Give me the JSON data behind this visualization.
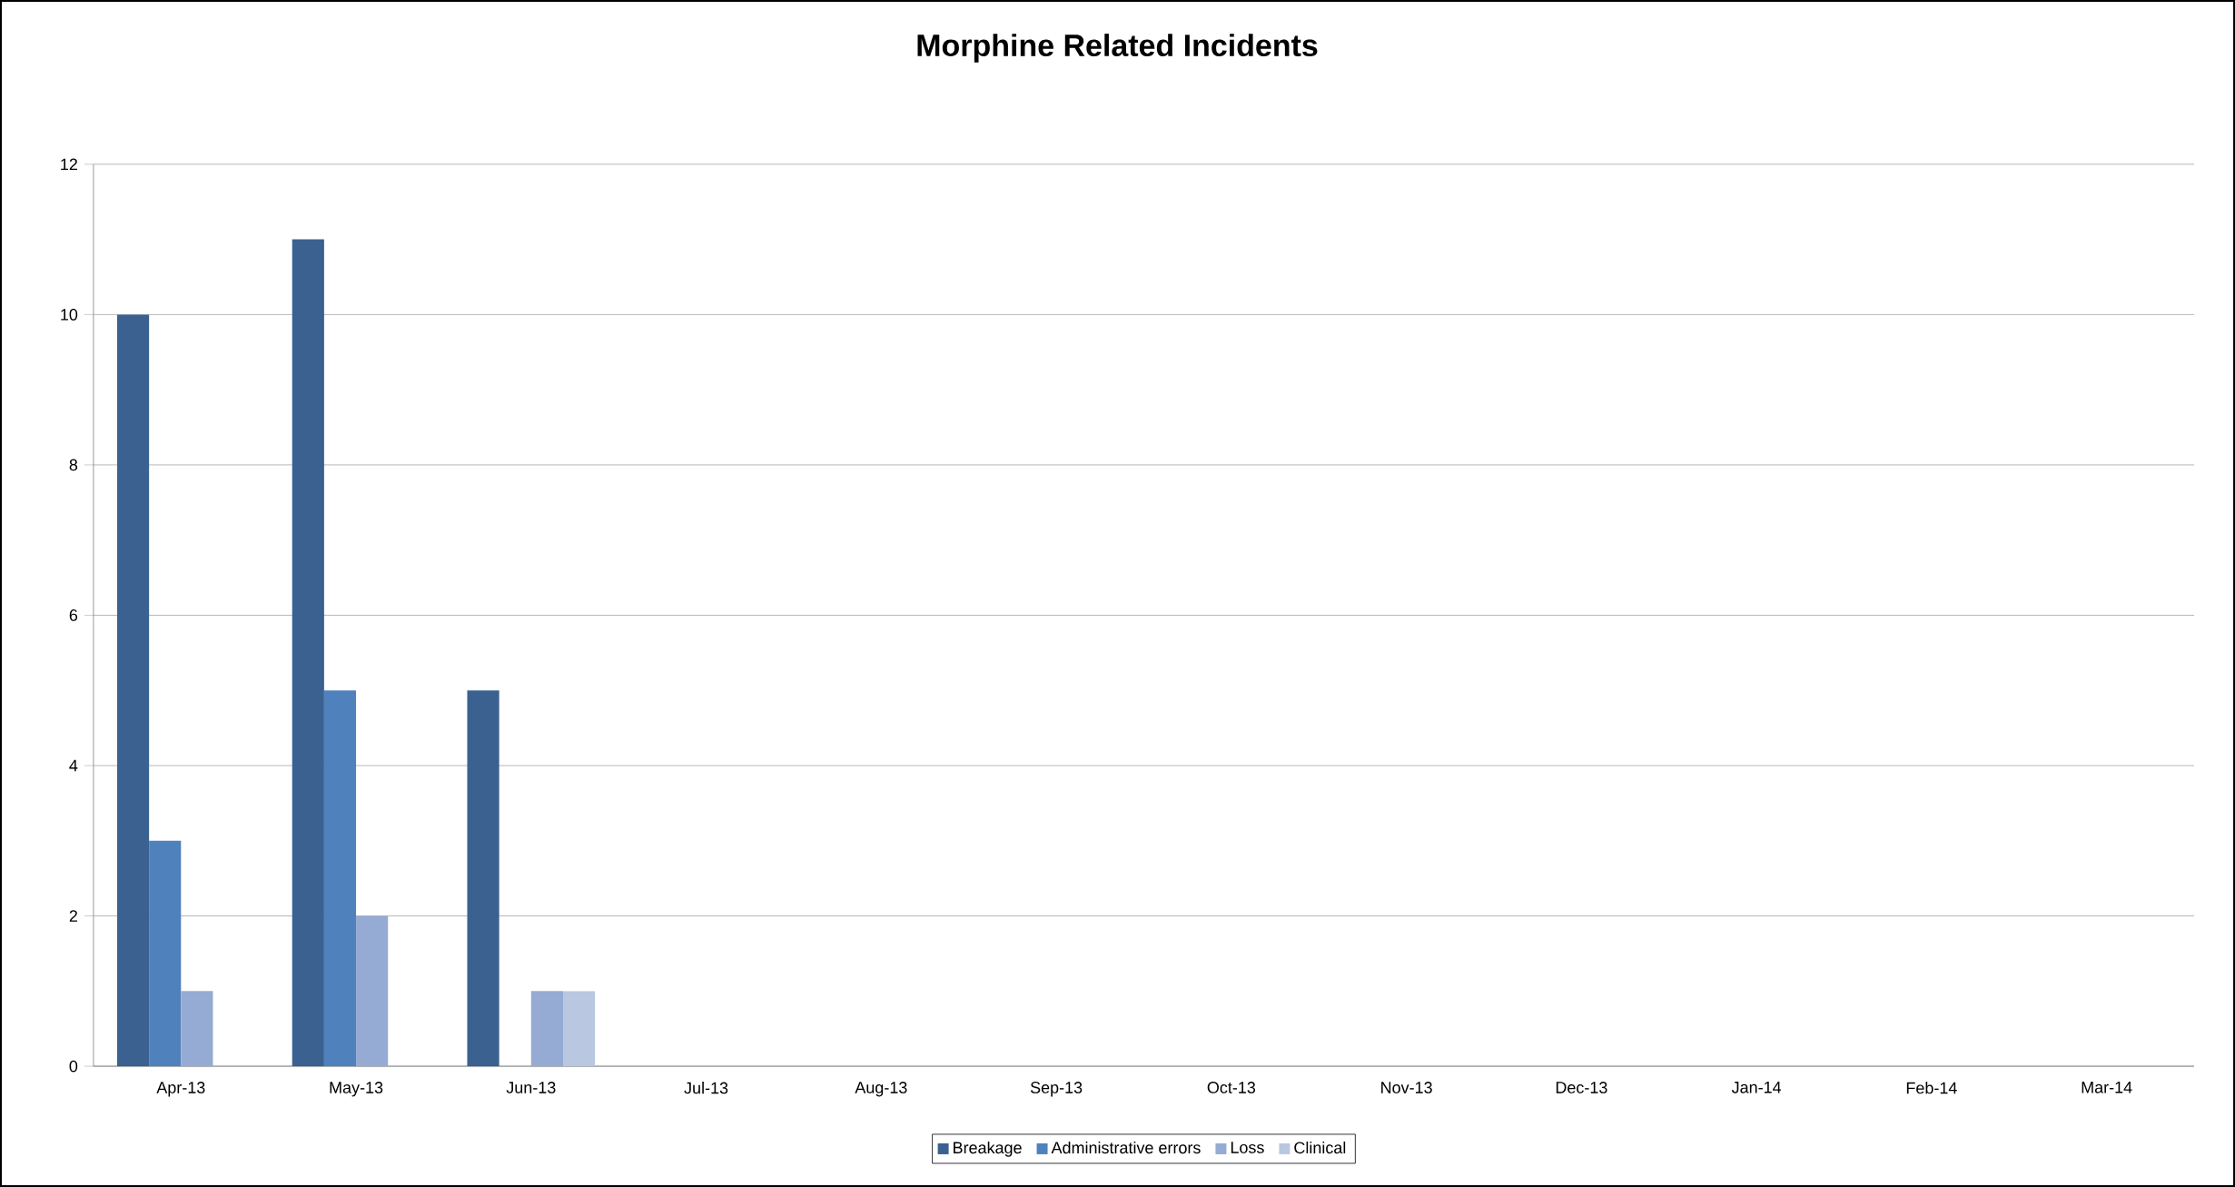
{
  "chart_data": {
    "type": "bar",
    "title": "Morphine Related Incidents",
    "categories": [
      "Apr-13",
      "May-13",
      "Jun-13",
      "Jul-13",
      "Aug-13",
      "Sep-13",
      "Oct-13",
      "Nov-13",
      "Dec-13",
      "Jan-14",
      "Feb-14",
      "Mar-14"
    ],
    "series": [
      {
        "name": "Breakage",
        "color": "#3a6190",
        "values": [
          10,
          11,
          5,
          null,
          null,
          null,
          null,
          null,
          null,
          null,
          null,
          null
        ]
      },
      {
        "name": "Administrative errors",
        "color": "#4f81bd",
        "values": [
          3,
          5,
          null,
          null,
          null,
          null,
          null,
          null,
          null,
          null,
          null,
          null
        ]
      },
      {
        "name": "Loss",
        "color": "#95abd3",
        "values": [
          1,
          2,
          1,
          null,
          null,
          null,
          null,
          null,
          null,
          null,
          null,
          null
        ]
      },
      {
        "name": "Clinical",
        "color": "#b9c7e0",
        "values": [
          null,
          null,
          1,
          null,
          null,
          null,
          null,
          null,
          null,
          null,
          null,
          null
        ]
      }
    ],
    "ylim": [
      0,
      12
    ],
    "yticks": [
      0,
      2,
      4,
      6,
      8,
      10,
      12
    ],
    "grid": "y",
    "legend": "bottom"
  }
}
